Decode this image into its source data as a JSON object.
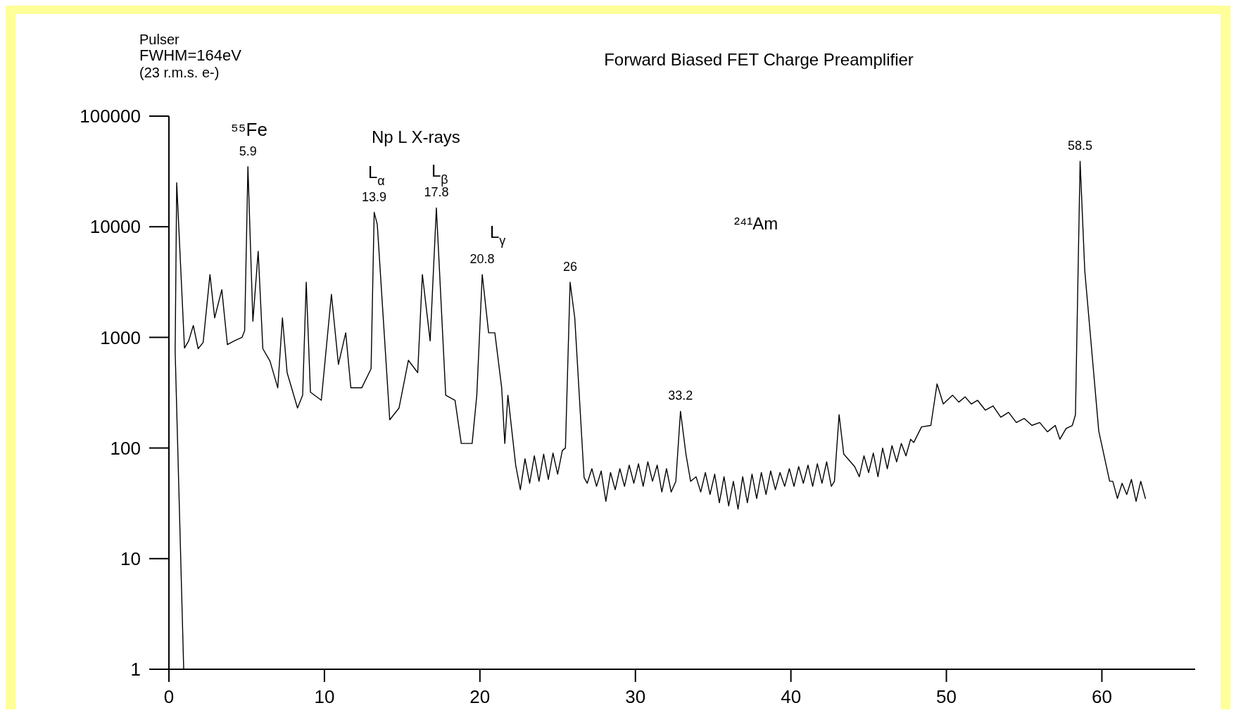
{
  "chart_data": {
    "type": "line",
    "title": "Forward Biased FET Charge Preamplifier",
    "log": "y",
    "grid": false,
    "marker": "none",
    "line_style": "solid",
    "xlim": [
      0,
      66
    ],
    "ylim": [
      1,
      100000
    ],
    "xticks": [
      0,
      10,
      20,
      30,
      40,
      50,
      60
    ],
    "yticks": [
      1,
      10,
      100,
      1000,
      10000,
      100000
    ],
    "series": [
      {
        "color": "#000000",
        "x": [
          0.95,
          0.4,
          0.5,
          1.0,
          1.27,
          1.57,
          1.88,
          2.2,
          2.64,
          2.94,
          3.4,
          3.76,
          4.2,
          4.7,
          4.87,
          5.08,
          5.4,
          5.74,
          6.04,
          6.5,
          7.0,
          7.3,
          7.6,
          8.27,
          8.6,
          8.83,
          9.1,
          9.8,
          10.45,
          10.9,
          11.37,
          11.7,
          12.4,
          13.0,
          13.2,
          13.4,
          14.2,
          14.8,
          15.4,
          16.0,
          16.3,
          16.8,
          17.2,
          17.8,
          18.4,
          18.8,
          19.5,
          19.8,
          20.15,
          20.56,
          20.96,
          21.4,
          21.6,
          21.8,
          22.3,
          22.6,
          22.9,
          23.2,
          23.5,
          23.8,
          24.1,
          24.4,
          24.7,
          25.0,
          25.3,
          25.5,
          25.8,
          26.1,
          26.7,
          26.9,
          27.2,
          27.5,
          27.8,
          28.1,
          28.4,
          28.7,
          29.0,
          29.3,
          29.6,
          29.9,
          30.2,
          30.5,
          30.8,
          31.1,
          31.4,
          31.7,
          32.0,
          32.3,
          32.6,
          32.9,
          33.25,
          33.55,
          33.9,
          34.2,
          34.5,
          34.8,
          35.1,
          35.4,
          35.7,
          36.0,
          36.3,
          36.6,
          36.9,
          37.2,
          37.5,
          37.8,
          38.1,
          38.4,
          38.7,
          39.0,
          39.3,
          39.6,
          39.9,
          40.2,
          40.5,
          40.8,
          41.1,
          41.4,
          41.7,
          42.0,
          42.3,
          42.6,
          42.8,
          43.1,
          43.4,
          44.1,
          44.4,
          44.7,
          45.0,
          45.3,
          45.6,
          45.9,
          46.2,
          46.5,
          46.8,
          47.1,
          47.4,
          47.7,
          47.9,
          48.4,
          49.0,
          49.4,
          49.8,
          50.4,
          50.8,
          51.2,
          51.6,
          52.0,
          52.5,
          53.0,
          53.5,
          54.0,
          54.5,
          55.0,
          55.5,
          56.0,
          56.5,
          57.0,
          57.3,
          57.7,
          58.1,
          58.3,
          58.6,
          58.9,
          59.8,
          60.5,
          60.7,
          61.0,
          61.3,
          61.6,
          61.9,
          62.2,
          62.5,
          62.8
        ],
        "values": [
          1,
          750,
          25000,
          800,
          930,
          1280,
          790,
          900,
          3700,
          1500,
          2700,
          860,
          930,
          1000,
          1150,
          35000,
          1400,
          6000,
          790,
          610,
          350,
          1500,
          480,
          230,
          300,
          3150,
          320,
          270,
          2450,
          570,
          1100,
          350,
          350,
          520,
          13500,
          10500,
          180,
          230,
          620,
          480,
          3700,
          930,
          14800,
          300,
          270,
          110,
          110,
          300,
          3700,
          1100,
          1100,
          350,
          110,
          300,
          70,
          42,
          80,
          48,
          85,
          50,
          88,
          52,
          90,
          58,
          95,
          100,
          3150,
          1500,
          54,
          48,
          65,
          45,
          62,
          33,
          60,
          42,
          65,
          45,
          70,
          48,
          72,
          45,
          75,
          50,
          70,
          40,
          65,
          40,
          50,
          215,
          88,
          50,
          55,
          40,
          60,
          38,
          58,
          32,
          55,
          30,
          50,
          28,
          55,
          32,
          58,
          35,
          60,
          38,
          62,
          42,
          60,
          45,
          65,
          45,
          68,
          48,
          70,
          45,
          72,
          48,
          75,
          45,
          50,
          200,
          88,
          68,
          55,
          85,
          60,
          90,
          55,
          100,
          65,
          105,
          75,
          110,
          85,
          120,
          112,
          155,
          160,
          380,
          250,
          300,
          260,
          290,
          250,
          270,
          220,
          240,
          190,
          210,
          170,
          185,
          160,
          170,
          140,
          160,
          120,
          150,
          160,
          200,
          39000,
          4000,
          142,
          50,
          50,
          35,
          48,
          38,
          52,
          33,
          50,
          35
        ]
      }
    ],
    "annotations": [
      "Pulser",
      "FWHM=164eV",
      "(23 r.m.s. e-)",
      "⁵⁵Fe",
      "Np L X-rays",
      "²⁴¹Am",
      "L$_{α}$",
      "L$_{β}$",
      "L$_{γ}$",
      {
        "text": "5.9",
        "x": 5.08,
        "y": 35000
      },
      {
        "text": "13.9",
        "x": 13.2,
        "y": 13500
      },
      {
        "text": "17.8",
        "x": 17.2,
        "y": 14800
      },
      {
        "text": "20.8",
        "x": 20.15,
        "y": 3700
      },
      {
        "text": "26",
        "x": 25.8,
        "y": 3150
      },
      {
        "text": "33.2",
        "x": 32.9,
        "y": 215
      },
      {
        "text": "58.5",
        "x": 58.6,
        "y": 39000
      }
    ]
  }
}
